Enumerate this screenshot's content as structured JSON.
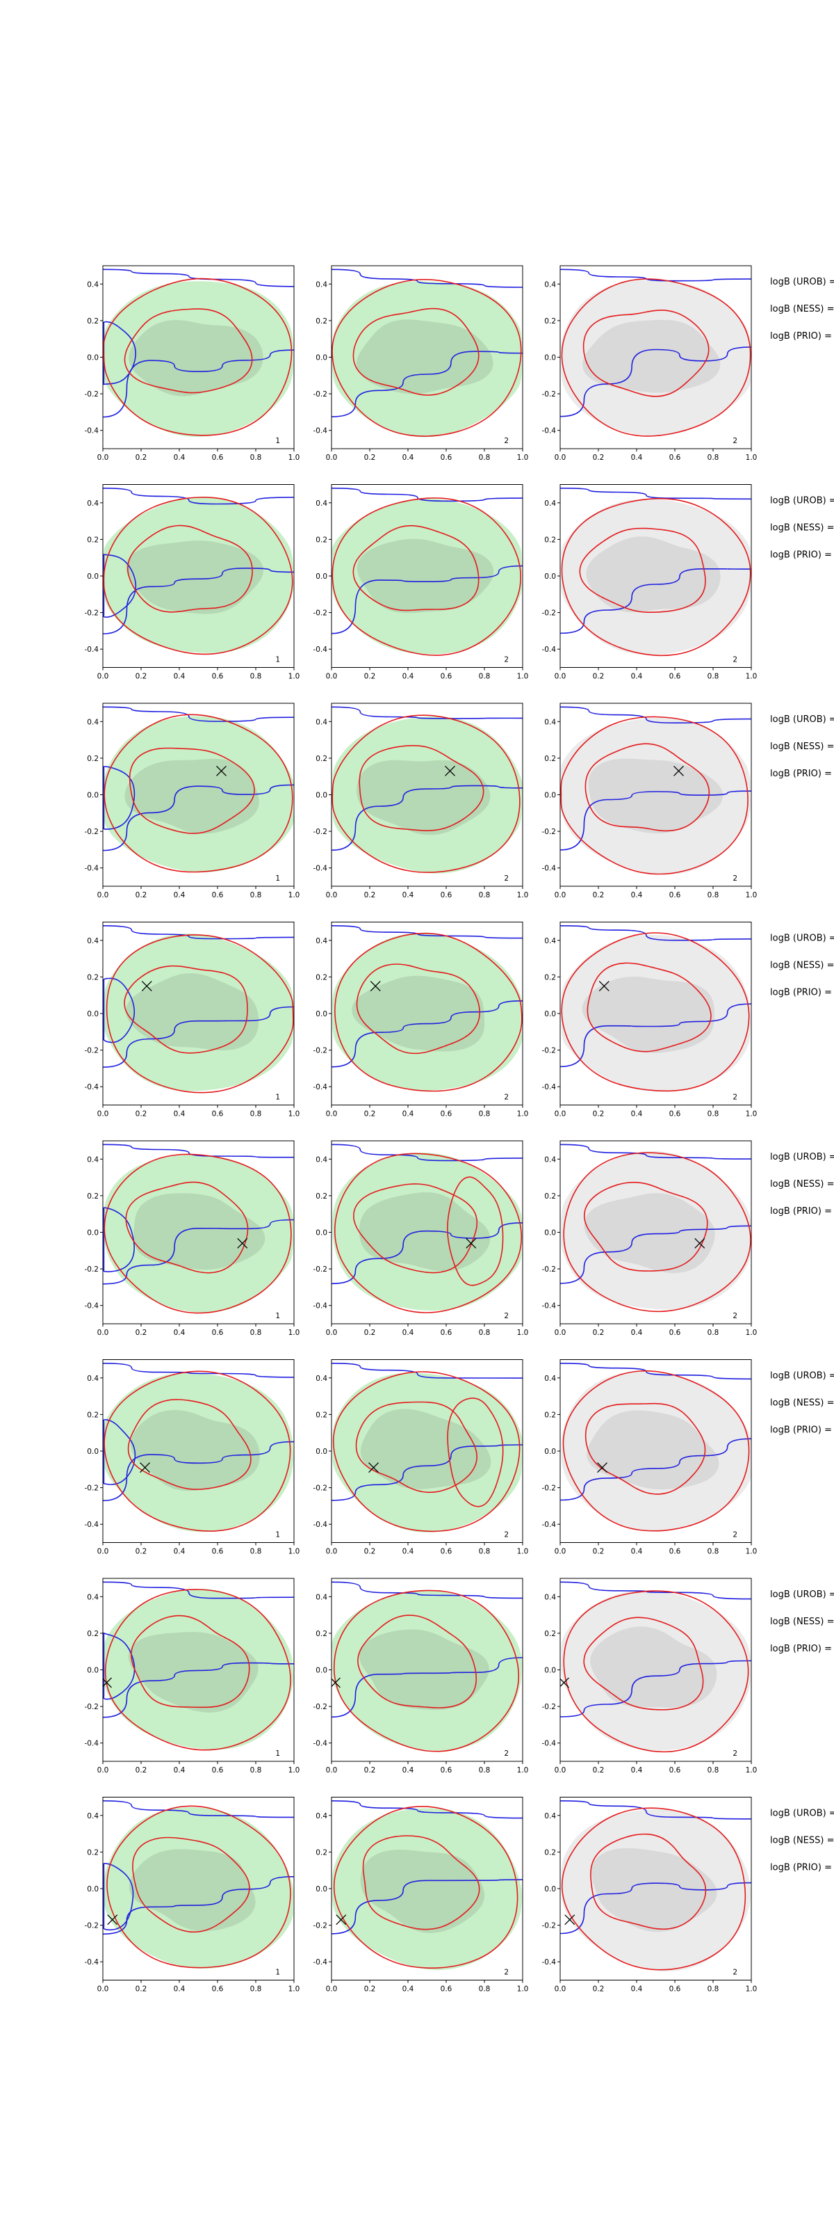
{
  "chart_data": {
    "type": "contour",
    "layout": {
      "rows": 8,
      "columns": 3
    },
    "x_axis": {
      "range": [
        0.0,
        1.0
      ],
      "ticks": [
        "0.0",
        "0.2",
        "0.4",
        "0.6",
        "0.8",
        "1.0"
      ]
    },
    "y_axis": {
      "range": [
        -0.5,
        0.5
      ],
      "ticks": [
        "0.4",
        "0.2",
        "0.0",
        "-0.2",
        "-0.4"
      ]
    },
    "panel_labels": [
      "1",
      "2",
      "2"
    ],
    "side_labels": [
      "logB (UROB) =",
      "logB (NESS) =",
      "logB (PRIO) ="
    ],
    "colors": {
      "red_contour": "#e41a1c",
      "blue_contour": "#1f1fe0",
      "green_fill_outer": "#c8f0c8",
      "green_fill_inner": "#b5d9b5",
      "grey_fill_outer": "#ebebeb",
      "grey_fill_inner": "#d9d9d9"
    },
    "markers": [
      {
        "row": 1,
        "x": null,
        "y": null
      },
      {
        "row": 2,
        "x": null,
        "y": null
      },
      {
        "row": 3,
        "x": 0.62,
        "y": 0.13
      },
      {
        "row": 4,
        "x": 0.23,
        "y": 0.15
      },
      {
        "row": 5,
        "x": 0.73,
        "y": -0.06
      },
      {
        "row": 6,
        "x": 0.22,
        "y": -0.09
      },
      {
        "row": 7,
        "x": 0.02,
        "y": -0.07
      },
      {
        "row": 8,
        "x": 0.05,
        "y": -0.17
      }
    ]
  }
}
